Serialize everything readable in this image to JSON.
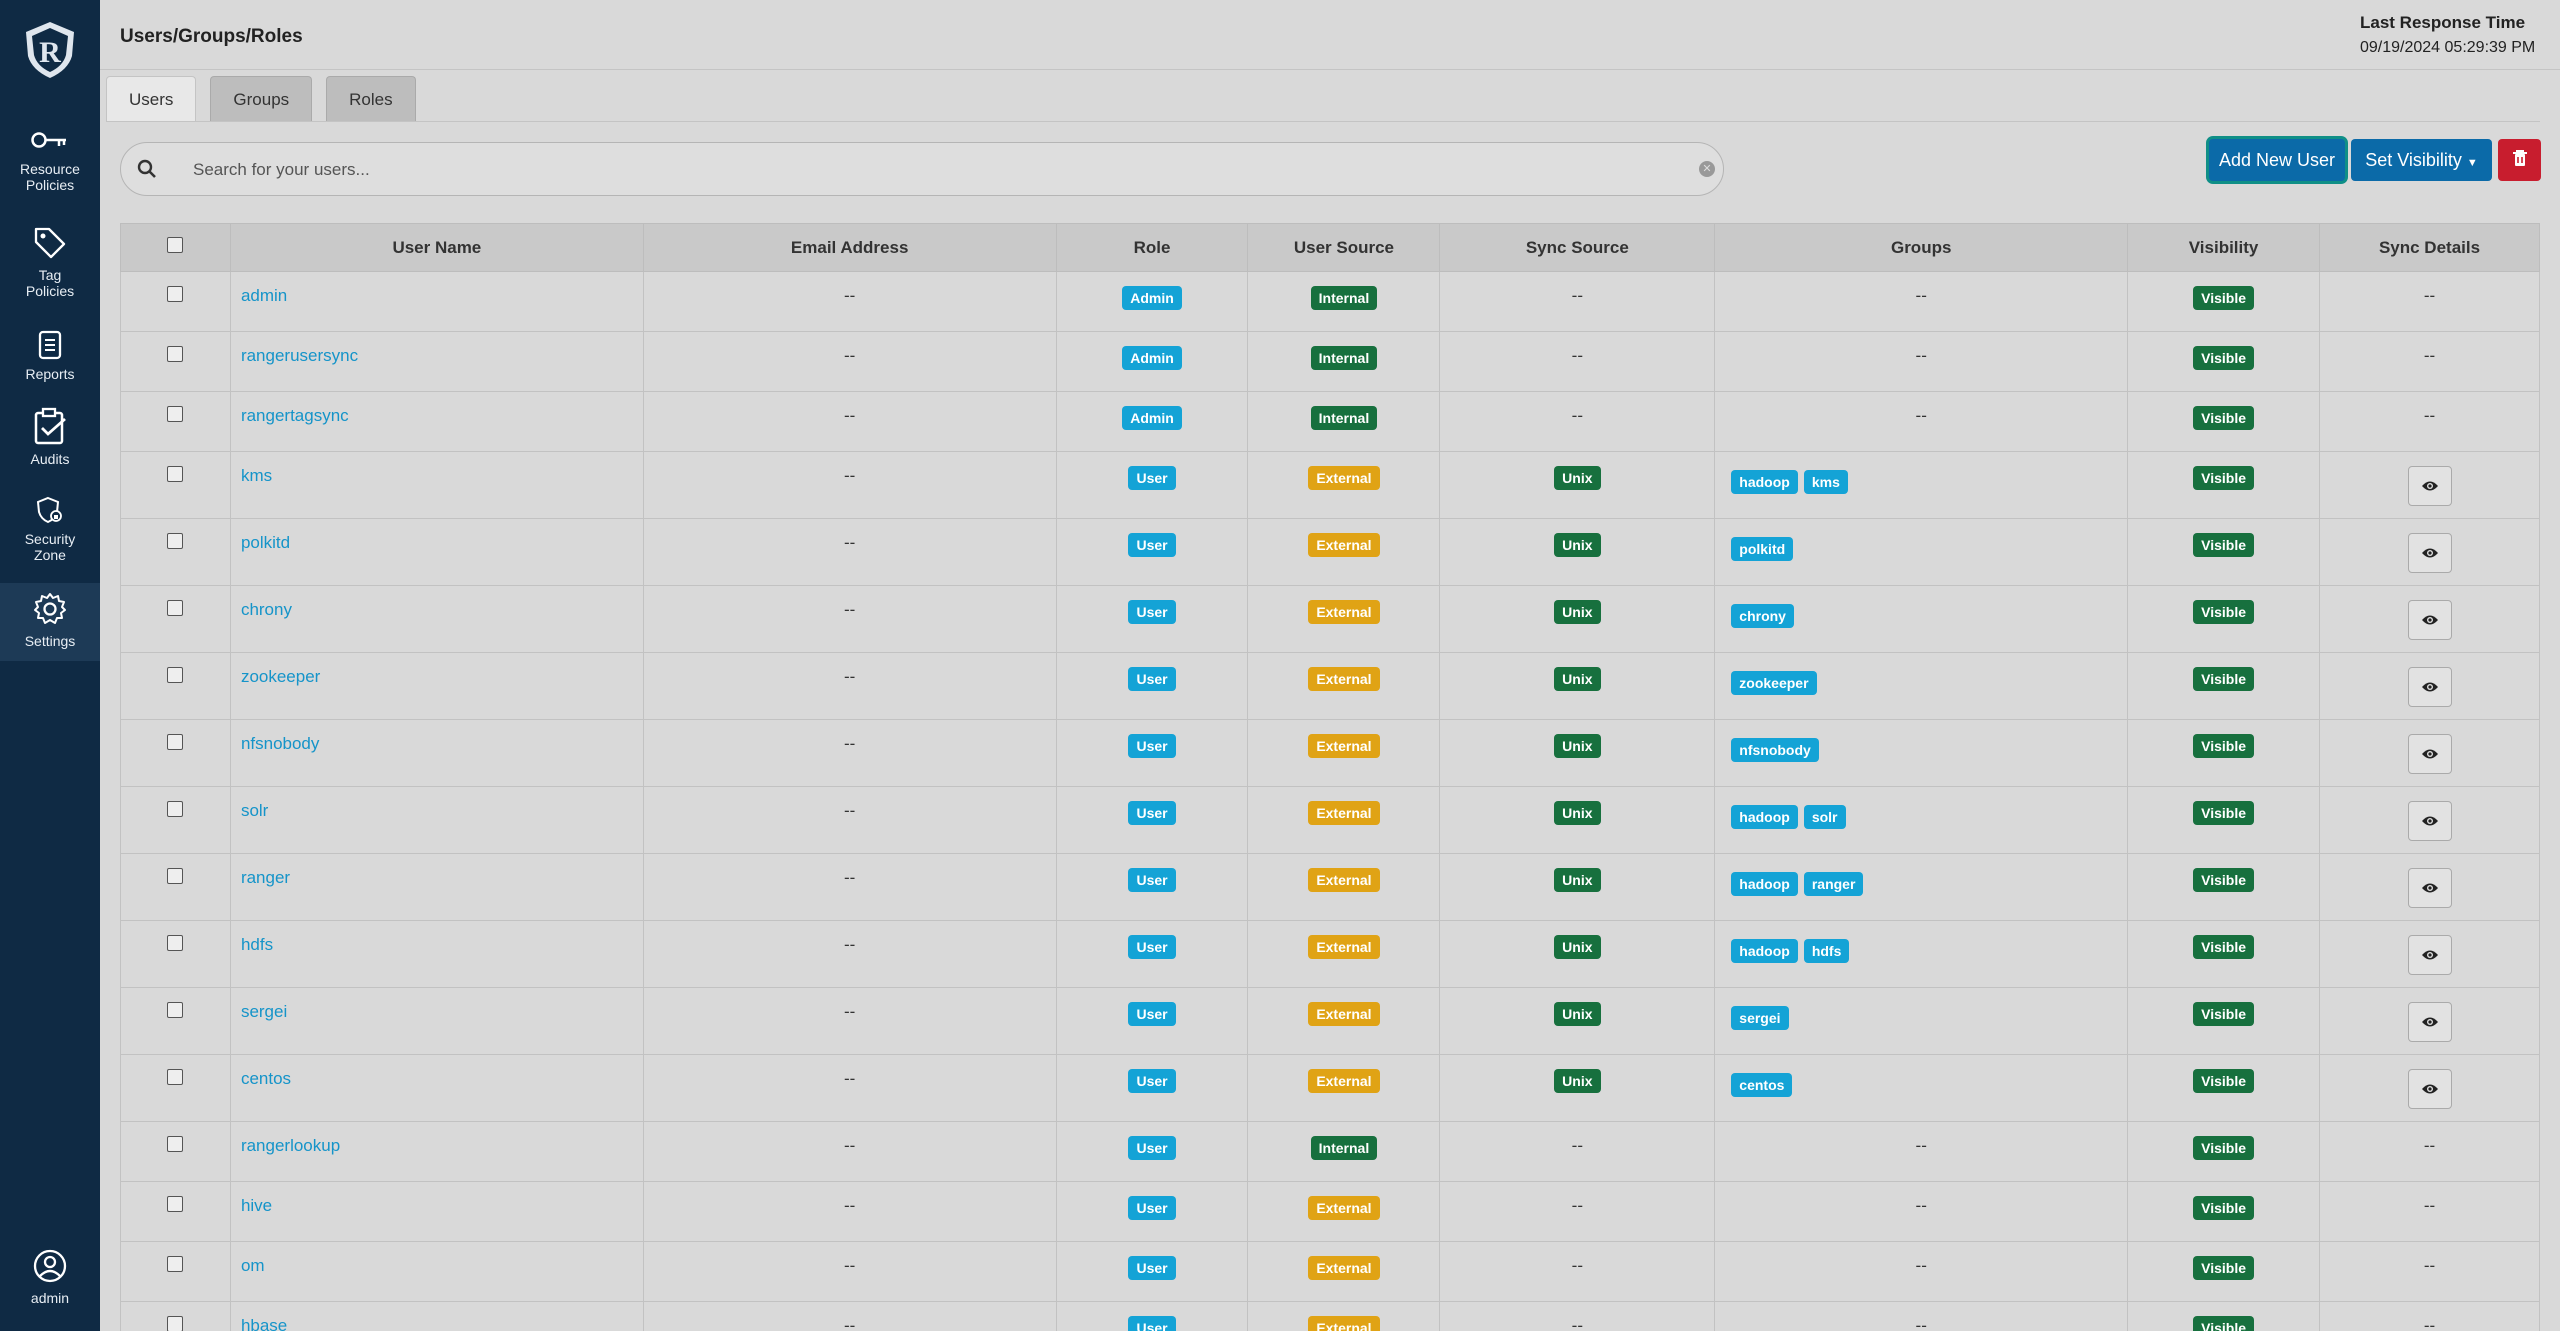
{
  "sidebar": {
    "items": [
      {
        "label": "Resource\nPolicies",
        "icon": "key-icon"
      },
      {
        "label": "Tag\nPolicies",
        "icon": "tag-icon"
      },
      {
        "label": "Reports",
        "icon": "report-icon"
      },
      {
        "label": "Audits",
        "icon": "clipboard-check-icon"
      },
      {
        "label": "Security\nZone",
        "icon": "shield-icon"
      },
      {
        "label": "Settings",
        "icon": "gear-icon"
      }
    ],
    "user_label": "admin"
  },
  "header": {
    "title": "Users/Groups/Roles",
    "response_title": "Last Response Time",
    "response_time": "09/19/2024 05:29:39 PM"
  },
  "tabs": [
    "Users",
    "Groups",
    "Roles"
  ],
  "search": {
    "placeholder": "Search for your users..."
  },
  "toolbar": {
    "add_label": "Add New User",
    "visibility_label": "Set Visibility"
  },
  "table": {
    "columns": [
      "User Name",
      "Email Address",
      "Role",
      "User Source",
      "Sync Source",
      "Groups",
      "Visibility",
      "Sync Details"
    ],
    "rows": [
      {
        "name": "admin",
        "email": "--",
        "role": "Admin",
        "source": "Internal",
        "sync": "--",
        "groups": [],
        "groups_text": "--",
        "visibility": "Visible",
        "details": "--"
      },
      {
        "name": "rangerusersync",
        "email": "--",
        "role": "Admin",
        "source": "Internal",
        "sync": "--",
        "groups": [],
        "groups_text": "--",
        "visibility": "Visible",
        "details": "--"
      },
      {
        "name": "rangertagsync",
        "email": "--",
        "role": "Admin",
        "source": "Internal",
        "sync": "--",
        "groups": [],
        "groups_text": "--",
        "visibility": "Visible",
        "details": "--"
      },
      {
        "name": "kms",
        "email": "--",
        "role": "User",
        "source": "External",
        "sync": "Unix",
        "groups": [
          "hadoop",
          "kms"
        ],
        "visibility": "Visible",
        "details": "eye"
      },
      {
        "name": "polkitd",
        "email": "--",
        "role": "User",
        "source": "External",
        "sync": "Unix",
        "groups": [
          "polkitd"
        ],
        "visibility": "Visible",
        "details": "eye"
      },
      {
        "name": "chrony",
        "email": "--",
        "role": "User",
        "source": "External",
        "sync": "Unix",
        "groups": [
          "chrony"
        ],
        "visibility": "Visible",
        "details": "eye"
      },
      {
        "name": "zookeeper",
        "email": "--",
        "role": "User",
        "source": "External",
        "sync": "Unix",
        "groups": [
          "zookeeper"
        ],
        "visibility": "Visible",
        "details": "eye"
      },
      {
        "name": "nfsnobody",
        "email": "--",
        "role": "User",
        "source": "External",
        "sync": "Unix",
        "groups": [
          "nfsnobody"
        ],
        "visibility": "Visible",
        "details": "eye"
      },
      {
        "name": "solr",
        "email": "--",
        "role": "User",
        "source": "External",
        "sync": "Unix",
        "groups": [
          "hadoop",
          "solr"
        ],
        "visibility": "Visible",
        "details": "eye"
      },
      {
        "name": "ranger",
        "email": "--",
        "role": "User",
        "source": "External",
        "sync": "Unix",
        "groups": [
          "hadoop",
          "ranger"
        ],
        "visibility": "Visible",
        "details": "eye"
      },
      {
        "name": "hdfs",
        "email": "--",
        "role": "User",
        "source": "External",
        "sync": "Unix",
        "groups": [
          "hadoop",
          "hdfs"
        ],
        "visibility": "Visible",
        "details": "eye"
      },
      {
        "name": "sergei",
        "email": "--",
        "role": "User",
        "source": "External",
        "sync": "Unix",
        "groups": [
          "sergei"
        ],
        "visibility": "Visible",
        "details": "eye"
      },
      {
        "name": "centos",
        "email": "--",
        "role": "User",
        "source": "External",
        "sync": "Unix",
        "groups": [
          "centos"
        ],
        "visibility": "Visible",
        "details": "eye"
      },
      {
        "name": "rangerlookup",
        "email": "--",
        "role": "User",
        "source": "Internal",
        "sync": "--",
        "groups": [],
        "groups_text": "--",
        "visibility": "Visible",
        "details": "--"
      },
      {
        "name": "hive",
        "email": "--",
        "role": "User",
        "source": "External",
        "sync": "--",
        "groups": [],
        "groups_text": "--",
        "visibility": "Visible",
        "details": "--"
      },
      {
        "name": "om",
        "email": "--",
        "role": "User",
        "source": "External",
        "sync": "--",
        "groups": [],
        "groups_text": "--",
        "visibility": "Visible",
        "details": "--"
      },
      {
        "name": "hbase",
        "email": "--",
        "role": "User",
        "source": "External",
        "sync": "--",
        "groups": [],
        "groups_text": "--",
        "visibility": "Visible",
        "details": "--"
      }
    ]
  },
  "colors": {
    "sidebar_bg": "#0f2a44",
    "link": "#1594c9",
    "badge_blue": "#14a3d6",
    "badge_green": "#17703e",
    "badge_orange": "#e0a315",
    "danger": "#c81d2e"
  }
}
